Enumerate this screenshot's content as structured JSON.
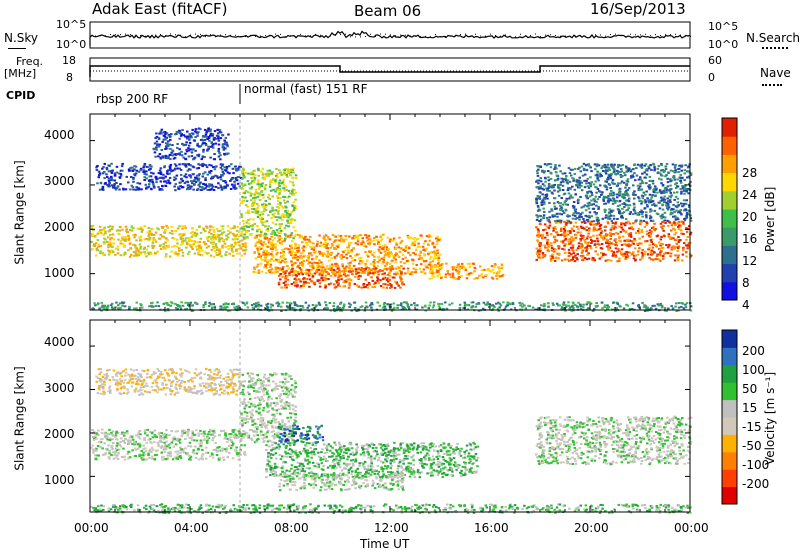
{
  "header": {
    "radar": "Adak East (fitACF)",
    "beam": "Beam 06",
    "date": "16/Sep/2013"
  },
  "top_panels": {
    "nsky_label": "N.Sky",
    "nsearch_label": "N.Search",
    "freq_label_1": "Freq.",
    "freq_label_2": "[MHz]",
    "nave_label": "Nave",
    "cpid_label": "CPID",
    "noise_left_ticks": [
      "10^5",
      "10^0"
    ],
    "noise_right_ticks": [
      "10^5",
      "10^0"
    ],
    "freq_left_ticks": [
      "18",
      "8"
    ],
    "nave_right_ticks": [
      "60",
      "0"
    ],
    "cpid_segments": [
      {
        "label": "rbsp 200 RF",
        "start": 0,
        "end": 6
      },
      {
        "label": "normal (fast) 151 RF",
        "start": 6,
        "end": 24
      }
    ]
  },
  "chart_data": [
    {
      "type": "heatmap",
      "name": "power",
      "xlabel": "Time UT",
      "ylabel": "Slant Range [km]",
      "xlim": [
        0,
        24
      ],
      "ylim": [
        180,
        4600
      ],
      "xticks": [
        "00:00",
        "04:00",
        "08:00",
        "12:00",
        "16:00",
        "20:00",
        "00:00"
      ],
      "yticks": [
        "1000",
        "2000",
        "3000",
        "4000"
      ],
      "colorbar": {
        "label": "Power [dB]",
        "ticks": [
          "28",
          "24",
          "20",
          "16",
          "12",
          "8",
          "4"
        ],
        "colors": [
          "#1010e0",
          "#2040b0",
          "#2e6e8e",
          "#3a9a6a",
          "#3fbf4a",
          "#9fd030",
          "#ffd800",
          "#ffa000",
          "#ff6000",
          "#e02000"
        ]
      },
      "regions": [
        {
          "t0": 0.0,
          "t1": 6.2,
          "r0": 1400,
          "r1": 2100,
          "level": 6
        },
        {
          "t0": 0.2,
          "t1": 6.0,
          "r0": 2900,
          "r1": 3500,
          "level": 1
        },
        {
          "t0": 2.5,
          "t1": 5.5,
          "r0": 3600,
          "r1": 4300,
          "level": 1
        },
        {
          "t0": 6.0,
          "t1": 8.2,
          "r0": 1800,
          "r1": 3400,
          "level": 5
        },
        {
          "t0": 6.5,
          "t1": 14.0,
          "r0": 1000,
          "r1": 1900,
          "level": 7
        },
        {
          "t0": 7.5,
          "t1": 12.5,
          "r0": 700,
          "r1": 1150,
          "level": 8
        },
        {
          "t0": 13.5,
          "t1": 16.5,
          "r0": 900,
          "r1": 1250,
          "level": 7
        },
        {
          "t0": 17.8,
          "t1": 24.0,
          "r0": 1300,
          "r1": 2200,
          "level": 8
        },
        {
          "t0": 17.8,
          "t1": 24.0,
          "r0": 2200,
          "r1": 3500,
          "level": 2
        },
        {
          "t0": 0.0,
          "t1": 24.0,
          "r0": 180,
          "r1": 380,
          "level": 3
        }
      ]
    },
    {
      "type": "heatmap",
      "name": "velocity",
      "xlabel": "Time UT",
      "ylabel": "Slant Range [km]",
      "xlim": [
        0,
        24
      ],
      "ylim": [
        180,
        4600
      ],
      "xticks": [
        "00:00",
        "04:00",
        "08:00",
        "12:00",
        "16:00",
        "20:00",
        "00:00"
      ],
      "yticks": [
        "1000",
        "2000",
        "3000",
        "4000"
      ],
      "colorbar": {
        "label": "Velocity [m s⁻¹]",
        "ticks": [
          "200",
          "100",
          "50",
          "15",
          "-15",
          "-50",
          "-100",
          "-200"
        ],
        "colors": [
          "#e00000",
          "#ff4000",
          "#ff8000",
          "#ffb000",
          "#d0c8b8",
          "#c0c0c0",
          "#30c030",
          "#20a040",
          "#3070c0",
          "#1030a0"
        ]
      },
      "regions": [
        {
          "t0": 0.0,
          "t1": 6.2,
          "r0": 1400,
          "r1": 2100,
          "level": 5
        },
        {
          "t0": 0.2,
          "t1": 6.0,
          "r0": 2900,
          "r1": 3500,
          "level": 4
        },
        {
          "t0": 6.0,
          "t1": 8.2,
          "r0": 1800,
          "r1": 3400,
          "level": 5
        },
        {
          "t0": 7.5,
          "t1": 9.3,
          "r0": 1800,
          "r1": 2200,
          "level": 8
        },
        {
          "t0": 7.0,
          "t1": 15.5,
          "r0": 1000,
          "r1": 1800,
          "level": 6
        },
        {
          "t0": 7.5,
          "t1": 12.5,
          "r0": 700,
          "r1": 1100,
          "level": 5
        },
        {
          "t0": 17.8,
          "t1": 24.0,
          "r0": 1300,
          "r1": 2400,
          "level": 5
        },
        {
          "t0": 0.0,
          "t1": 24.0,
          "r0": 180,
          "r1": 380,
          "level": 6
        }
      ]
    }
  ]
}
